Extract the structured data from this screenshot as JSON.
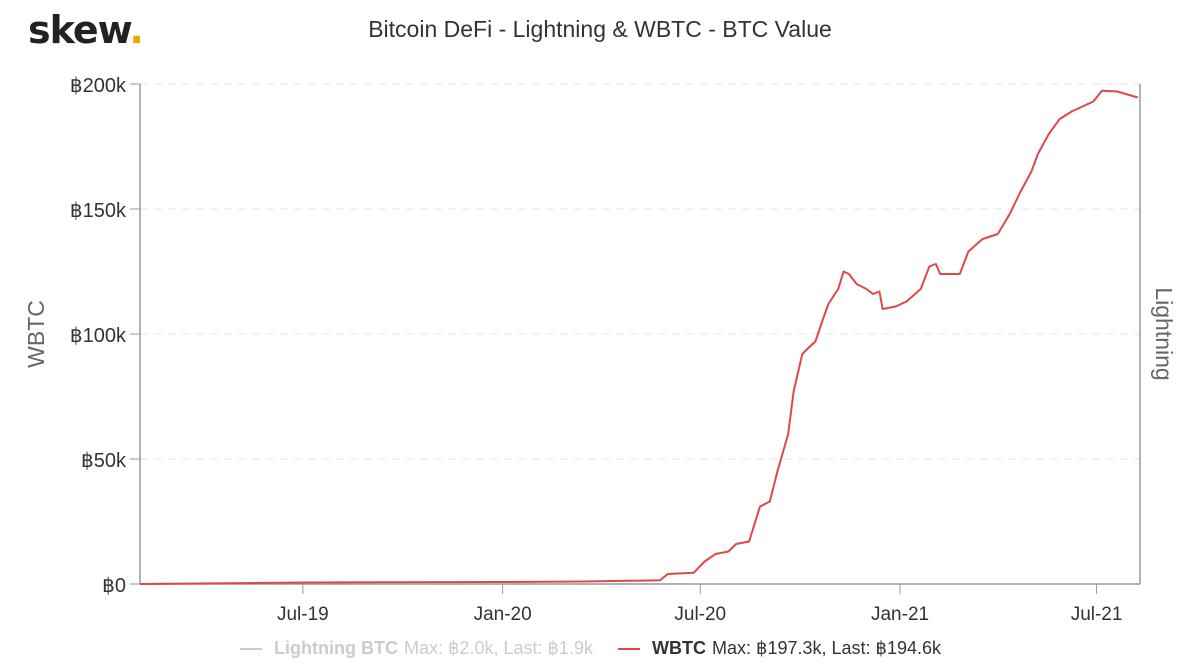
{
  "header": {
    "logo_text": "skew",
    "logo_dot": ".",
    "title": "Bitcoin DeFi - Lightning & WBTC - BTC Value"
  },
  "colors": {
    "wbtc": "#e04848",
    "lightning": "#cccccc",
    "logo_dot": "#f0a400",
    "grid": "#e6e6e6"
  },
  "legend": {
    "lightning": {
      "name": "Lightning BTC",
      "stats": "Max: ฿2.0k, Last: ฿1.9k"
    },
    "wbtc": {
      "name": "WBTC",
      "stats": "Max: ฿197.3k, Last: ฿194.6k"
    }
  },
  "chart_data": {
    "type": "line",
    "title": "Bitcoin DeFi - Lightning & WBTC - BTC Value",
    "ylabel": "WBTC",
    "y2label": "Lightning",
    "ylim": [
      0,
      200000
    ],
    "yticks": [
      {
        "value": 0,
        "label": "฿0"
      },
      {
        "value": 50000,
        "label": "฿50k"
      },
      {
        "value": 100000,
        "label": "฿100k"
      },
      {
        "value": 150000,
        "label": "฿150k"
      },
      {
        "value": 200000,
        "label": "฿200k"
      }
    ],
    "xlim": [
      "2019-02-01",
      "2021-08-10"
    ],
    "xticks": [
      {
        "date": "2019-07-01",
        "label": "Jul-19"
      },
      {
        "date": "2020-01-01",
        "label": "Jan-20"
      },
      {
        "date": "2020-07-01",
        "label": "Jul-20"
      },
      {
        "date": "2021-01-01",
        "label": "Jan-21"
      },
      {
        "date": "2021-07-01",
        "label": "Jul-21"
      }
    ],
    "grid": true,
    "legend_position": "bottom",
    "series": [
      {
        "name": "WBTC",
        "color": "#e04848",
        "points": [
          [
            "2019-02-01",
            0
          ],
          [
            "2019-07-01",
            600
          ],
          [
            "2020-01-01",
            800
          ],
          [
            "2020-03-15",
            1000
          ],
          [
            "2020-05-25",
            1500
          ],
          [
            "2020-06-01",
            4000
          ],
          [
            "2020-06-25",
            4500
          ],
          [
            "2020-07-05",
            9000
          ],
          [
            "2020-07-15",
            12000
          ],
          [
            "2020-07-27",
            13000
          ],
          [
            "2020-08-03",
            16000
          ],
          [
            "2020-08-15",
            17000
          ],
          [
            "2020-08-25",
            31000
          ],
          [
            "2020-09-03",
            33000
          ],
          [
            "2020-09-10",
            45000
          ],
          [
            "2020-09-20",
            60000
          ],
          [
            "2020-09-25",
            77000
          ],
          [
            "2020-10-03",
            92000
          ],
          [
            "2020-10-10",
            95000
          ],
          [
            "2020-10-15",
            97000
          ],
          [
            "2020-10-22",
            106000
          ],
          [
            "2020-10-27",
            112000
          ],
          [
            "2020-11-05",
            118000
          ],
          [
            "2020-11-10",
            125000
          ],
          [
            "2020-11-15",
            124000
          ],
          [
            "2020-11-22",
            120000
          ],
          [
            "2020-12-01",
            118000
          ],
          [
            "2020-12-07",
            116000
          ],
          [
            "2020-12-13",
            117000
          ],
          [
            "2020-12-16",
            110000
          ],
          [
            "2020-12-28",
            111000
          ],
          [
            "2021-01-07",
            113000
          ],
          [
            "2021-01-20",
            118000
          ],
          [
            "2021-01-28",
            127000
          ],
          [
            "2021-02-03",
            128000
          ],
          [
            "2021-02-07",
            124000
          ],
          [
            "2021-02-25",
            124000
          ],
          [
            "2021-03-05",
            133000
          ],
          [
            "2021-03-18",
            138000
          ],
          [
            "2021-04-01",
            140000
          ],
          [
            "2021-04-12",
            148000
          ],
          [
            "2021-04-22",
            157000
          ],
          [
            "2021-05-02",
            165000
          ],
          [
            "2021-05-08",
            172000
          ],
          [
            "2021-05-18",
            180000
          ],
          [
            "2021-05-28",
            186000
          ],
          [
            "2021-06-08",
            189000
          ],
          [
            "2021-06-18",
            191000
          ],
          [
            "2021-06-28",
            193000
          ],
          [
            "2021-07-06",
            197300
          ],
          [
            "2021-07-20",
            197000
          ],
          [
            "2021-08-08",
            194600
          ]
        ]
      },
      {
        "name": "Lightning BTC",
        "color": "#cccccc",
        "points": []
      }
    ]
  }
}
